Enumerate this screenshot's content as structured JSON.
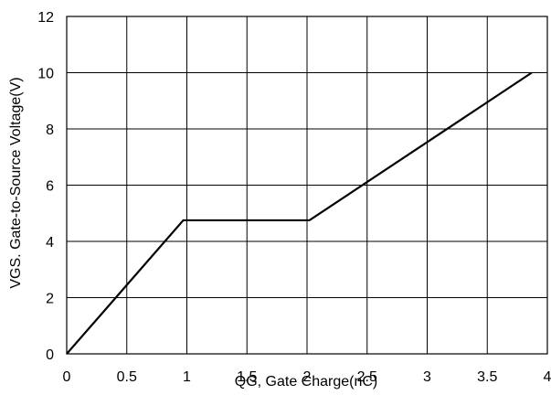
{
  "chart_data": {
    "type": "line",
    "title": "",
    "xlabel": "QG, Gate Charge(nC)",
    "ylabel": "VGS. Gate-to-Source Voltage(V)",
    "xlim": [
      0,
      4
    ],
    "ylim": [
      0,
      12
    ],
    "x_ticks": [
      0,
      0.5,
      1,
      1.5,
      2,
      2.5,
      3,
      3.5,
      4
    ],
    "x_tick_labels": [
      "0",
      "0.5",
      "1",
      "1.5",
      "2",
      "2.5",
      "3",
      "3.5",
      "4"
    ],
    "y_ticks": [
      0,
      2,
      4,
      6,
      8,
      10,
      12
    ],
    "y_tick_labels": [
      "0",
      "2",
      "4",
      "6",
      "8",
      "10",
      "12"
    ],
    "grid": true,
    "series": [
      {
        "x": [
          0,
          0.97,
          2.02,
          3.87
        ],
        "y": [
          0,
          4.75,
          4.75,
          10
        ]
      }
    ],
    "line_color": "#000000",
    "grid_color": "#000000"
  }
}
